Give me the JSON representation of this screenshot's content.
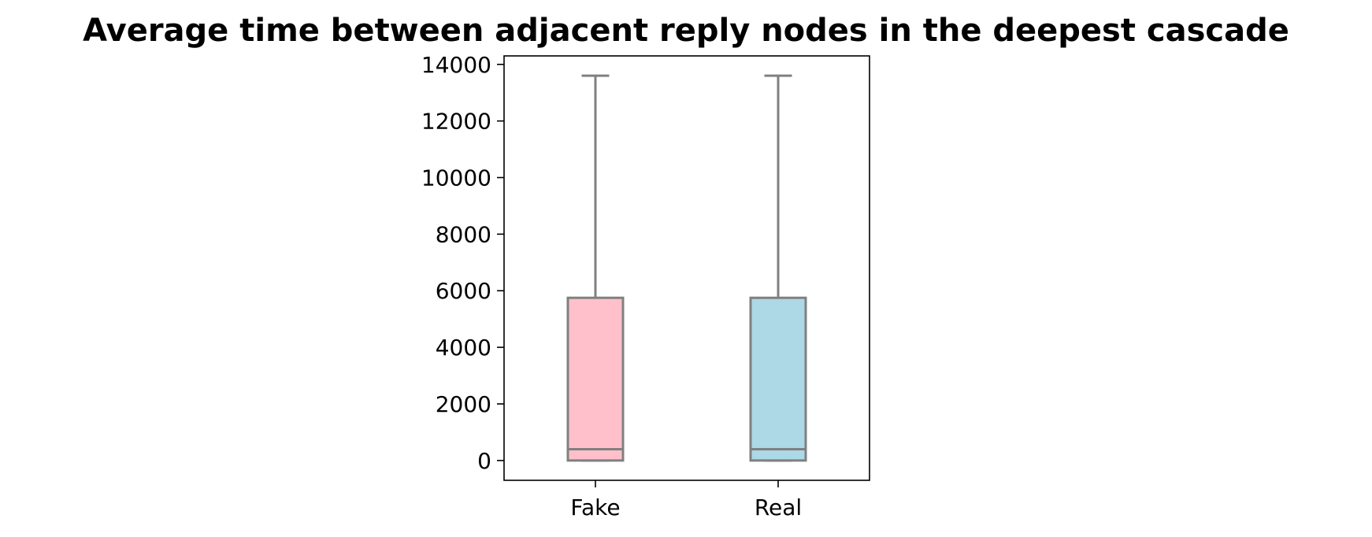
{
  "chart_data": {
    "type": "box",
    "title": "Average time between adjacent reply nodes in the deepest cascade",
    "xlabel": "",
    "ylabel": "",
    "categories": [
      "Fake",
      "Real"
    ],
    "boxes": [
      {
        "category": "Fake",
        "whisker_low": 0,
        "q1": 0,
        "median": 400,
        "q3": 5750,
        "whisker_high": 13600,
        "color": "#FFC0CB"
      },
      {
        "category": "Real",
        "whisker_low": 0,
        "q1": 0,
        "median": 400,
        "q3": 5750,
        "whisker_high": 13600,
        "color": "#ADD8E6"
      }
    ],
    "ylim": [
      -700,
      14300
    ],
    "yticks": [
      0,
      2000,
      4000,
      6000,
      8000,
      10000,
      12000,
      14000
    ],
    "line_color": "#808080",
    "grid": false,
    "legend": "none"
  }
}
